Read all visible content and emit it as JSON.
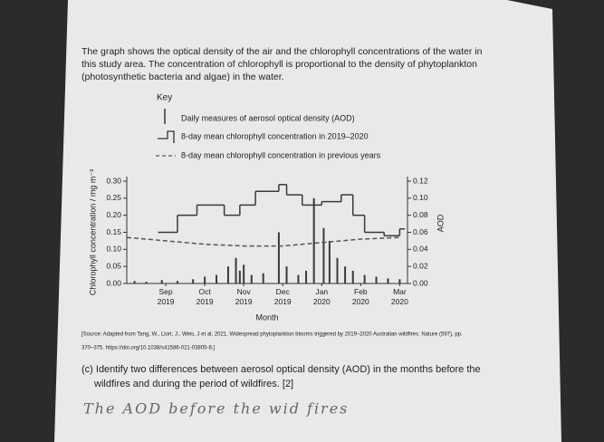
{
  "intro": [
    "The graph shows the optical density of the air and the chlorophyll concentrations of the water in",
    "this study area. The concentration of chlorophyll is proportional to the density of phytoplankton",
    "(photosynthetic bacteria and algae) in the water."
  ],
  "key": {
    "title": "Key",
    "items": [
      "Daily measures of aerosol optical density (AOD)",
      "8-day mean chlorophyll concentration in 2019–2020",
      "8-day mean chlorophyll concentration in previous years"
    ]
  },
  "chart_data": {
    "type": "line",
    "xlabel": "Month",
    "ylabel": "Chlorophyll concentration / mg m⁻³",
    "y2label": "AOD",
    "xlim": [
      0,
      7.2
    ],
    "xticks": [
      {
        "value": 1,
        "label": "Sep 2019"
      },
      {
        "value": 2,
        "label": "Oct 2019"
      },
      {
        "value": 3,
        "label": "Nov 2019"
      },
      {
        "value": 4,
        "label": "Dec 2019"
      },
      {
        "value": 5,
        "label": "Jan 2020"
      },
      {
        "value": 6,
        "label": "Feb 2020"
      },
      {
        "value": 7,
        "label": "Mar 2020"
      }
    ],
    "ylim": [
      0,
      0.3
    ],
    "yticks": [
      {
        "value": 0,
        "label": "0.00"
      },
      0.05,
      {
        "value": 0.1,
        "label": "0.10"
      },
      0.15,
      {
        "value": 0.2,
        "label": "0.20"
      },
      0.25,
      {
        "value": 0.3,
        "label": "0.30"
      }
    ],
    "y2lim": [
      0,
      0.12
    ],
    "y2ticks": [
      {
        "value": 0,
        "label": "0.00"
      },
      0.02,
      0.04,
      0.06,
      0.08,
      {
        "value": 0.1,
        "label": "0.10"
      },
      0.12
    ],
    "series": [
      {
        "name": "Daily measures of aerosol optical density (AOD)",
        "type": "bar",
        "axis": "y2",
        "color": "#3a3a3a",
        "x": [
          0.2,
          0.5,
          0.9,
          1.3,
          1.7,
          2.0,
          2.3,
          2.6,
          2.8,
          2.9,
          3.0,
          3.2,
          3.5,
          3.9,
          4.1,
          4.4,
          4.6,
          4.8,
          5.05,
          5.2,
          5.4,
          5.6,
          5.8,
          6.1,
          6.4,
          6.7,
          7.0
        ],
        "values": [
          0.003,
          0.002,
          0.004,
          0.003,
          0.005,
          0.008,
          0.01,
          0.02,
          0.03,
          0.015,
          0.022,
          0.01,
          0.012,
          0.06,
          0.02,
          0.01,
          0.015,
          0.1,
          0.065,
          0.05,
          0.03,
          0.02,
          0.015,
          0.01,
          0.008,
          0.006,
          0.005
        ]
      },
      {
        "name": "8-day mean chlorophyll concentration in 2019–2020",
        "type": "step",
        "color": "#3a3a3a",
        "x": [
          0.8,
          1.3,
          1.8,
          2.5,
          2.9,
          3.3,
          3.9,
          4.1,
          4.5,
          5.0,
          5.5,
          5.8,
          6.1,
          6.6,
          7.0
        ],
        "values": [
          0.15,
          0.2,
          0.23,
          0.2,
          0.23,
          0.27,
          0.29,
          0.26,
          0.23,
          0.24,
          0.26,
          0.2,
          0.15,
          0.14,
          0.16
        ]
      },
      {
        "name": "8-day mean chlorophyll concentration in previous years",
        "type": "line",
        "dash": true,
        "color": "#555555",
        "x": [
          0,
          1,
          2,
          3,
          4,
          5,
          6,
          7
        ],
        "values": [
          0.135,
          0.125,
          0.115,
          0.11,
          0.11,
          0.12,
          0.13,
          0.135
        ]
      }
    ]
  },
  "source": [
    "[Source: Adapted from Tang, W., Llort, J., Weis, J et al, 2021. Widespread phytoplankton blooms triggered by 2019–2020 Australian wildfires. Nature (597), pp.",
    "370–375. https://doi.org/10.1038/s41586-021-03805-8.]"
  ],
  "question": [
    "(c) Identify two differences between aerosol optical density (AOD) in the months before the",
    "wildfires and during the period of wildfires. [2]"
  ],
  "answer": "The AOD before the wid fires"
}
